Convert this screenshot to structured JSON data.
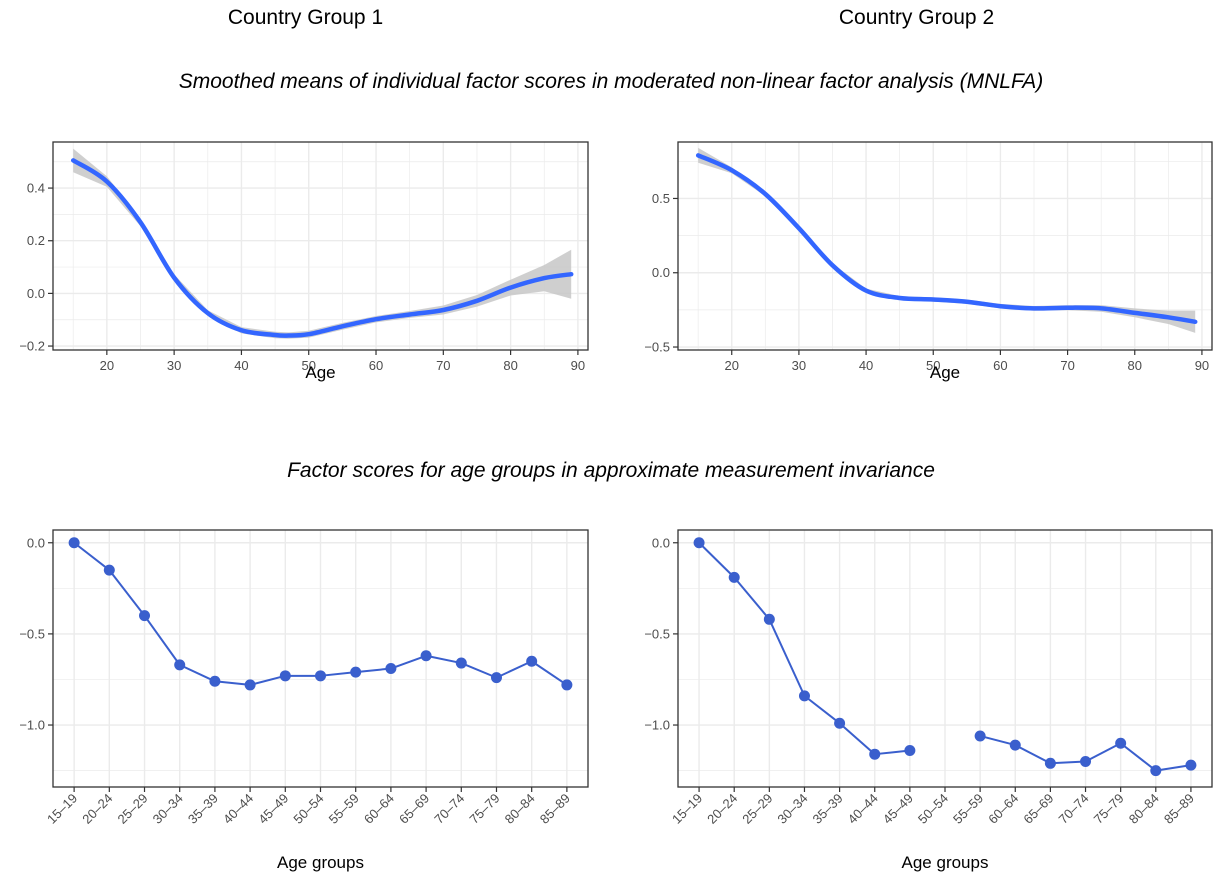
{
  "col_titles": [
    "Country Group 1",
    "Country Group 2"
  ],
  "section_titles": {
    "top": "Smoothed means of individual factor scores in moderated non-linear factor analysis (MNLFA)",
    "bottom": "Factor scores for age groups in approximate measurement invariance"
  },
  "colors": {
    "line": "#3366ff",
    "point": "#3a5fcd",
    "ribbon": "#c7c7c7",
    "grid": "#ebebeb",
    "frame": "#333333"
  },
  "chart_data": [
    {
      "type": "line",
      "subtype": "smoothed-with-confidence-band",
      "panel": "top-left",
      "xlabel": "Age",
      "ylabel": "",
      "xlim": [
        12,
        91.5
      ],
      "ylim": [
        -0.215,
        0.575
      ],
      "xticks": [
        20,
        30,
        40,
        50,
        60,
        70,
        80,
        90
      ],
      "yticks": [
        -0.2,
        0.0,
        0.2,
        0.4
      ],
      "ytick_labels": [
        "−0.2",
        "0.0",
        "0.2",
        "0.4"
      ],
      "grid": true,
      "series": [
        {
          "x": [
            15,
            20,
            25,
            30,
            35,
            40,
            45,
            47,
            50,
            55,
            60,
            65,
            70,
            75,
            80,
            85,
            89
          ],
          "y": [
            0.505,
            0.425,
            0.27,
            0.06,
            -0.075,
            -0.14,
            -0.158,
            -0.16,
            -0.155,
            -0.125,
            -0.098,
            -0.08,
            -0.063,
            -0.028,
            0.022,
            0.058,
            0.073
          ],
          "lower": [
            0.46,
            0.405,
            0.255,
            0.047,
            -0.086,
            -0.152,
            -0.17,
            -0.172,
            -0.168,
            -0.138,
            -0.11,
            -0.093,
            -0.08,
            -0.05,
            -0.008,
            0.008,
            -0.02
          ],
          "upper": [
            0.55,
            0.445,
            0.285,
            0.073,
            -0.064,
            -0.128,
            -0.146,
            -0.148,
            -0.142,
            -0.112,
            -0.086,
            -0.067,
            -0.046,
            -0.006,
            0.052,
            0.108,
            0.166
          ]
        }
      ]
    },
    {
      "type": "line",
      "subtype": "smoothed-with-confidence-band",
      "panel": "top-right",
      "xlabel": "Age",
      "ylabel": "",
      "xlim": [
        12,
        91.5
      ],
      "ylim": [
        -0.52,
        0.88
      ],
      "xticks": [
        20,
        30,
        40,
        50,
        60,
        70,
        80,
        90
      ],
      "yticks": [
        -0.5,
        0.0,
        0.5
      ],
      "ytick_labels": [
        "−0.5",
        "0.0",
        "0.5"
      ],
      "grid": true,
      "series": [
        {
          "x": [
            15,
            20,
            25,
            30,
            35,
            40,
            45,
            50,
            55,
            60,
            65,
            70,
            75,
            80,
            85,
            89
          ],
          "y": [
            0.79,
            0.69,
            0.53,
            0.3,
            0.05,
            -0.12,
            -0.17,
            -0.18,
            -0.195,
            -0.225,
            -0.24,
            -0.235,
            -0.24,
            -0.27,
            -0.3,
            -0.33
          ],
          "lower": [
            0.74,
            0.67,
            0.515,
            0.285,
            0.038,
            -0.133,
            -0.183,
            -0.194,
            -0.21,
            -0.24,
            -0.256,
            -0.252,
            -0.262,
            -0.3,
            -0.345,
            -0.405
          ],
          "upper": [
            0.84,
            0.71,
            0.545,
            0.315,
            0.062,
            -0.107,
            -0.157,
            -0.166,
            -0.18,
            -0.21,
            -0.224,
            -0.218,
            -0.218,
            -0.24,
            -0.255,
            -0.255
          ]
        }
      ]
    },
    {
      "type": "line",
      "subtype": "points-and-lines",
      "panel": "bottom-left",
      "xlabel": "Age groups",
      "ylabel": "",
      "categories": [
        "15–19",
        "20–24",
        "25–29",
        "30–34",
        "35–39",
        "40–44",
        "45–49",
        "50–54",
        "55–59",
        "60–64",
        "65–69",
        "70–74",
        "75–79",
        "80–84",
        "85–89"
      ],
      "ylim": [
        -1.34,
        0.07
      ],
      "yticks": [
        -1.0,
        -0.5,
        0.0
      ],
      "ytick_labels": [
        "−1.0",
        "−0.5",
        "0.0"
      ],
      "grid": true,
      "series": [
        {
          "values": [
            0.0,
            -0.15,
            -0.4,
            -0.67,
            -0.76,
            -0.78,
            -0.73,
            -0.73,
            -0.71,
            -0.69,
            -0.62,
            -0.66,
            -0.74,
            -0.65,
            -0.78
          ]
        }
      ]
    },
    {
      "type": "line",
      "subtype": "points-and-lines",
      "panel": "bottom-right",
      "xlabel": "Age groups",
      "ylabel": "",
      "categories": [
        "15–19",
        "20–24",
        "25–29",
        "30–34",
        "35–39",
        "40–44",
        "45–49",
        "50–54",
        "55–59",
        "60–64",
        "65–69",
        "70–74",
        "75–79",
        "80–84",
        "85–89"
      ],
      "ylim": [
        -1.34,
        0.07
      ],
      "yticks": [
        -1.0,
        -0.5,
        0.0
      ],
      "ytick_labels": [
        "−1.0",
        "−0.5",
        "0.0"
      ],
      "grid": true,
      "series": [
        {
          "values": [
            0.0,
            -0.19,
            -0.42,
            -0.84,
            -0.99,
            -1.16,
            -1.14,
            null,
            -1.06,
            -1.11,
            -1.21,
            -1.2,
            -1.1,
            -1.25,
            -1.22
          ]
        }
      ]
    }
  ]
}
